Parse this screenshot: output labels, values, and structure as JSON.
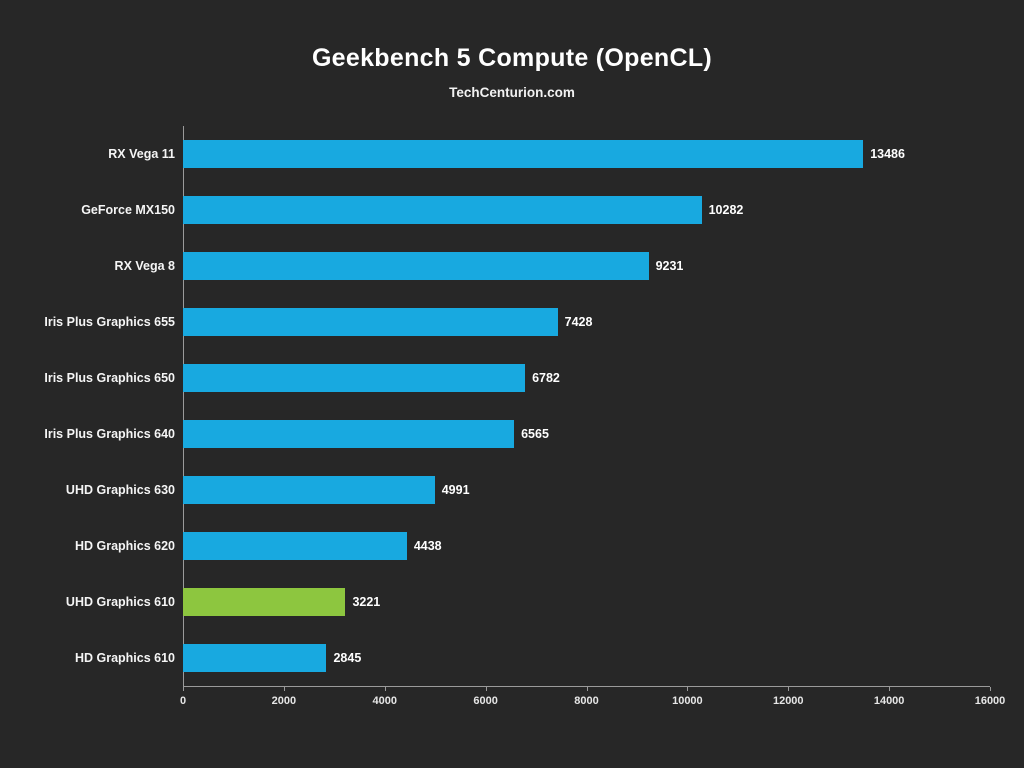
{
  "chart_data": {
    "type": "bar",
    "orientation": "horizontal",
    "title": "Geekbench 5 Compute (OpenCL)",
    "subtitle": "TechCenturion.com",
    "categories": [
      "RX Vega 11",
      "GeForce MX150",
      "RX Vega 8",
      "Iris Plus Graphics 655",
      "Iris Plus Graphics 650",
      "Iris Plus Graphics 640",
      "UHD Graphics 630",
      "HD Graphics 620",
      "UHD Graphics 610",
      "HD Graphics 610"
    ],
    "values": [
      13486,
      10282,
      9231,
      7428,
      6782,
      6565,
      4991,
      4438,
      3221,
      2845
    ],
    "highlighted_category": "UHD Graphics 610",
    "xlim": [
      0,
      16000
    ],
    "x_ticks": [
      0,
      2000,
      4000,
      6000,
      8000,
      10000,
      12000,
      14000,
      16000
    ],
    "bar_color": "#18a9e0",
    "highlight_color": "#8dc63f",
    "background_color": "#272727",
    "text_color": "#ffffff",
    "grid": false,
    "legend": "none"
  }
}
